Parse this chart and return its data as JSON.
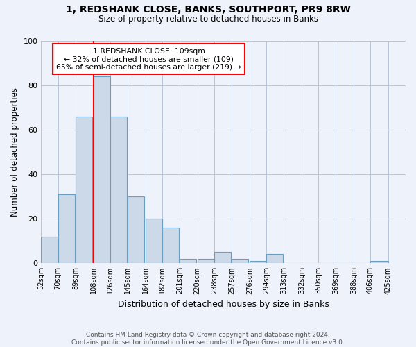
{
  "title1": "1, REDSHANK CLOSE, BANKS, SOUTHPORT, PR9 8RW",
  "title2": "Size of property relative to detached houses in Banks",
  "xlabel": "Distribution of detached houses by size in Banks",
  "ylabel": "Number of detached properties",
  "annotation_line1": "1 REDSHANK CLOSE: 109sqm",
  "annotation_line2": "← 32% of detached houses are smaller (109)",
  "annotation_line3": "65% of semi-detached houses are larger (219) →",
  "bar_left_edges": [
    52,
    70,
    89,
    108,
    126,
    145,
    164,
    182,
    201,
    220,
    238,
    257,
    276,
    294,
    313,
    332,
    350,
    369,
    388,
    406
  ],
  "bar_widths": [
    18,
    18,
    18,
    18,
    18,
    18,
    18,
    18,
    18,
    18,
    18,
    18,
    18,
    18,
    18,
    18,
    18,
    18,
    18,
    19
  ],
  "bar_heights": [
    12,
    31,
    66,
    84,
    66,
    30,
    20,
    16,
    2,
    2,
    5,
    2,
    1,
    4,
    0,
    0,
    0,
    0,
    0,
    1
  ],
  "tick_labels": [
    "52sqm",
    "70sqm",
    "89sqm",
    "108sqm",
    "126sqm",
    "145sqm",
    "164sqm",
    "182sqm",
    "201sqm",
    "220sqm",
    "238sqm",
    "257sqm",
    "276sqm",
    "294sqm",
    "313sqm",
    "332sqm",
    "350sqm",
    "369sqm",
    "388sqm",
    "406sqm",
    "425sqm"
  ],
  "bar_color": "#ccd9e8",
  "bar_edge_color": "#6a9ec0",
  "vline_x": 108,
  "vline_color": "red",
  "annotation_box_color": "white",
  "annotation_box_edge_color": "red",
  "background_color": "#eef2fb",
  "ylim": [
    0,
    100
  ],
  "xlim_left": 52,
  "xlim_right": 444,
  "footnote": "Contains HM Land Registry data © Crown copyright and database right 2024.\nContains public sector information licensed under the Open Government Licence v3.0."
}
